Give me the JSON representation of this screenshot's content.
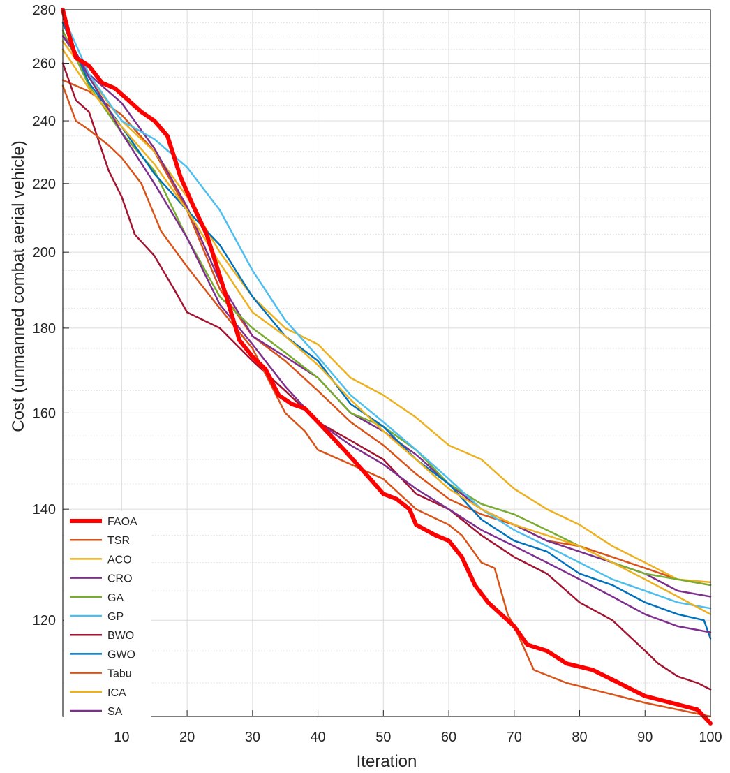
{
  "chart_data": {
    "type": "line",
    "xlabel": "Iteration",
    "ylabel": "Cost (unmanned combat aerial vehicle)",
    "xlim": [
      1,
      100
    ],
    "ylim": [
      105,
      280
    ],
    "yscale": "log",
    "grid": true,
    "legend_position": "bottom-left",
    "xticks": [
      10,
      20,
      30,
      40,
      50,
      60,
      70,
      80,
      90,
      100
    ],
    "yticks": [
      120,
      140,
      160,
      180,
      200,
      220,
      240,
      260,
      280
    ],
    "series": [
      {
        "name": "FAOA",
        "color": "#FF0000",
        "width": 6,
        "x": [
          1,
          2,
          3,
          5,
          7,
          9,
          11,
          13,
          15,
          17,
          19,
          21,
          23,
          26,
          28,
          30,
          32,
          34,
          36,
          38,
          40,
          42,
          44,
          46,
          48,
          50,
          52,
          54,
          55,
          58,
          60,
          62,
          64,
          66,
          68,
          70,
          72,
          75,
          78,
          82,
          86,
          90,
          94,
          96,
          98,
          100
        ],
        "y": [
          280,
          270,
          262,
          259,
          253,
          251,
          247,
          243,
          240,
          235,
          222,
          213,
          205,
          188,
          177,
          173,
          170,
          164,
          162,
          161,
          158,
          155,
          152,
          149,
          146,
          143,
          142,
          140,
          137,
          135,
          134,
          131,
          126,
          123,
          121,
          119,
          116,
          115,
          113,
          112,
          110,
          108,
          107,
          106.5,
          106,
          104
        ]
      },
      {
        "name": "TSR",
        "color": "#D95319",
        "width": 2.5,
        "x": [
          1,
          5,
          10,
          15,
          20,
          25,
          30,
          35,
          40,
          45,
          50,
          55,
          60,
          65,
          70,
          75,
          80,
          85,
          90,
          95,
          100
        ],
        "y": [
          254,
          250,
          242,
          230,
          212,
          190,
          178,
          172,
          165,
          158,
          153,
          147,
          142,
          139,
          137,
          134,
          133,
          131,
          129,
          127,
          126
        ]
      },
      {
        "name": "ACO",
        "color": "#EDB120",
        "width": 2.5,
        "x": [
          1,
          5,
          10,
          15,
          20,
          25,
          30,
          35,
          40,
          45,
          50,
          55,
          60,
          65,
          70,
          75,
          80,
          85,
          90,
          95,
          100
        ],
        "y": [
          268,
          255,
          240,
          230,
          216,
          200,
          188,
          180,
          176,
          168,
          164,
          159,
          153,
          150,
          144,
          140,
          137,
          133,
          130,
          127,
          126.5
        ]
      },
      {
        "name": "CRO",
        "color": "#7E2F8E",
        "width": 2.5,
        "x": [
          1,
          5,
          10,
          15,
          20,
          25,
          30,
          35,
          40,
          45,
          50,
          55,
          60,
          65,
          70,
          75,
          80,
          85,
          90,
          95,
          100
        ],
        "y": [
          270,
          256,
          246,
          231,
          213,
          192,
          178,
          173,
          168,
          160,
          156,
          151,
          145,
          140,
          137,
          134,
          132,
          130,
          128,
          125,
          124
        ]
      },
      {
        "name": "GA",
        "color": "#77AC30",
        "width": 2.5,
        "x": [
          1,
          5,
          10,
          15,
          20,
          25,
          30,
          35,
          40,
          45,
          50,
          55,
          60,
          65,
          70,
          75,
          80,
          85,
          90,
          95,
          100
        ],
        "y": [
          272,
          252,
          236,
          224,
          204,
          188,
          180,
          174,
          168,
          160,
          157,
          152,
          145,
          141,
          139,
          136,
          133,
          130,
          128,
          127,
          126
        ]
      },
      {
        "name": "GP",
        "color": "#4DBEEE",
        "width": 2.5,
        "x": [
          1,
          5,
          10,
          15,
          20,
          25,
          30,
          35,
          40,
          45,
          50,
          55,
          60,
          65,
          70,
          75,
          80,
          85,
          90,
          95,
          100
        ],
        "y": [
          278,
          256,
          240,
          234,
          225,
          212,
          195,
          182,
          173,
          164,
          158,
          152,
          146,
          140,
          136,
          133,
          130,
          127,
          125,
          123,
          122
        ]
      },
      {
        "name": "BWO",
        "color": "#A2142F",
        "width": 2.5,
        "x": [
          1,
          3,
          5,
          8,
          10,
          12,
          15,
          18,
          20,
          25,
          30,
          35,
          40,
          45,
          50,
          55,
          60,
          65,
          70,
          75,
          80,
          85,
          90,
          92,
          95,
          98,
          100
        ],
        "y": [
          260,
          247,
          243,
          224,
          216,
          205,
          199,
          190,
          184,
          180,
          172,
          165,
          158,
          154,
          150,
          143,
          140,
          135,
          131,
          128,
          123,
          120,
          115,
          113,
          111,
          110,
          109
        ]
      },
      {
        "name": "GWO",
        "color": "#0072BD",
        "width": 2.5,
        "x": [
          1,
          5,
          10,
          15,
          20,
          25,
          30,
          35,
          40,
          45,
          50,
          55,
          60,
          65,
          70,
          75,
          80,
          85,
          90,
          95,
          99,
          100
        ],
        "y": [
          275,
          253,
          238,
          223,
          212,
          202,
          188,
          178,
          172,
          162,
          157,
          150,
          145,
          138,
          134,
          132,
          128,
          126,
          123,
          121,
          120,
          117
        ]
      },
      {
        "name": "Tabu",
        "color": "#D95319",
        "width": 2.5,
        "x": [
          1,
          3,
          5,
          8,
          10,
          13,
          16,
          20,
          25,
          30,
          35,
          38,
          40,
          45,
          50,
          55,
          60,
          62,
          65,
          67,
          69,
          70,
          73,
          78,
          82,
          86,
          90,
          95,
          100
        ],
        "y": [
          252,
          240,
          237,
          232,
          228,
          220,
          206,
          196,
          185,
          175,
          160,
          156,
          152,
          149,
          146,
          140,
          137,
          135,
          130,
          129,
          121,
          119,
          112,
          110,
          109,
          108,
          107,
          106,
          105
        ]
      },
      {
        "name": "ICA",
        "color": "#EDB120",
        "width": 2.5,
        "x": [
          1,
          5,
          10,
          15,
          20,
          25,
          30,
          35,
          40,
          45,
          50,
          55,
          60,
          65,
          70,
          75,
          80,
          85,
          90,
          95,
          100
        ],
        "y": [
          265,
          251,
          238,
          226,
          212,
          197,
          184,
          178,
          171,
          163,
          156,
          150,
          144,
          140,
          137,
          135,
          133,
          130,
          127,
          124,
          121
        ]
      },
      {
        "name": "SA",
        "color": "#7E2F8E",
        "width": 2.5,
        "x": [
          1,
          3,
          5,
          8,
          10,
          15,
          20,
          25,
          30,
          35,
          40,
          45,
          50,
          55,
          60,
          65,
          70,
          75,
          80,
          85,
          90,
          95,
          100
        ],
        "y": [
          270,
          264,
          255,
          244,
          236,
          220,
          204,
          186,
          176,
          166,
          158,
          153,
          149,
          144,
          140,
          136,
          133,
          130,
          127,
          124,
          121,
          119,
          118
        ]
      }
    ]
  }
}
